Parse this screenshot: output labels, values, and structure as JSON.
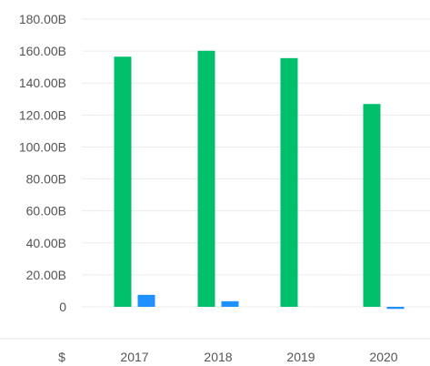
{
  "chart_data": {
    "type": "bar",
    "categories": [
      "2017",
      "2018",
      "2019",
      "2020"
    ],
    "series": [
      {
        "color": "#00c06b",
        "values": [
          156.5,
          160.2,
          155.6,
          126.9
        ]
      },
      {
        "color": "#1e90ff",
        "values": [
          7.5,
          3.5,
          0,
          -1.3
        ]
      }
    ],
    "ylim": [
      0,
      180
    ],
    "yticks": [
      {
        "value": 0,
        "label": "0"
      },
      {
        "value": 20,
        "label": "20.00B"
      },
      {
        "value": 40,
        "label": "40.00B"
      },
      {
        "value": 60,
        "label": "60.00B"
      },
      {
        "value": 80,
        "label": "80.00B"
      },
      {
        "value": 100,
        "label": "100.00B"
      },
      {
        "value": 120,
        "label": "120.00B"
      },
      {
        "value": 140,
        "label": "140.00B"
      },
      {
        "value": 160,
        "label": "160.00B"
      },
      {
        "value": 180,
        "label": "180.00B"
      }
    ],
    "currency_symbol": "$",
    "grid": true
  }
}
